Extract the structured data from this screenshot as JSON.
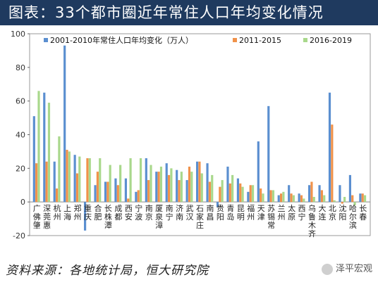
{
  "title": "图表：33个都市圈近年常住人口年均变化情况",
  "source": "资料来源：各地统计局，恒大研究院",
  "brand": "泽平宏观",
  "colors": {
    "s1": "#5b8fd0",
    "s2": "#f0924a",
    "s3": "#a9d88c",
    "title_bg": "#1f3a5f"
  },
  "chart_data": {
    "type": "bar",
    "categories": [
      "广佛肇",
      "深莞惠",
      "杭州",
      "上海",
      "郑州",
      "重庆",
      "合肥",
      "长株潭",
      "成都",
      "西安",
      "宁波",
      "南京",
      "厦泉漳",
      "南宁",
      "济南",
      "武汉",
      "石家庄",
      "南昌",
      "贵阳",
      "青岛",
      "昆明",
      "福州",
      "天津",
      "苏锡常",
      "兰州",
      "太原",
      "西宁",
      "乌鲁木齐",
      "大连",
      "北京",
      "沈阳",
      "哈尔滨",
      "长春"
    ],
    "series": [
      {
        "name": "2001-2010年常住人口年均变化（万人）",
        "values": [
          51,
          65,
          24,
          93,
          28,
          -17,
          10,
          12,
          14,
          14,
          6,
          26,
          18,
          23,
          19,
          13,
          24,
          23,
          -3,
          21,
          14,
          6,
          36,
          57,
          4,
          10,
          5,
          10,
          10,
          65,
          10,
          16,
          5
        ]
      },
      {
        "name": "2011-2015",
        "values": [
          23,
          24,
          8,
          31,
          17,
          26,
          18,
          12,
          10,
          2,
          7,
          13,
          18,
          16,
          13,
          21,
          24,
          12,
          9,
          11,
          11,
          10,
          8,
          7,
          5,
          5,
          4,
          12,
          7,
          46,
          -1,
          4,
          5
        ]
      },
      {
        "name": "2016-2019",
        "values": [
          66,
          59,
          39,
          30,
          27,
          26,
          26,
          22,
          22,
          26,
          26,
          22,
          21,
          20,
          18,
          18,
          17,
          16,
          13,
          16,
          9,
          10,
          5,
          7,
          6,
          4,
          2,
          3,
          4,
          1,
          3,
          -2,
          4
        ]
      }
    ],
    "ylim": [
      -20,
      100
    ],
    "yticks": [
      -20,
      0,
      20,
      40,
      60,
      80,
      100
    ],
    "legend_position": "top"
  }
}
